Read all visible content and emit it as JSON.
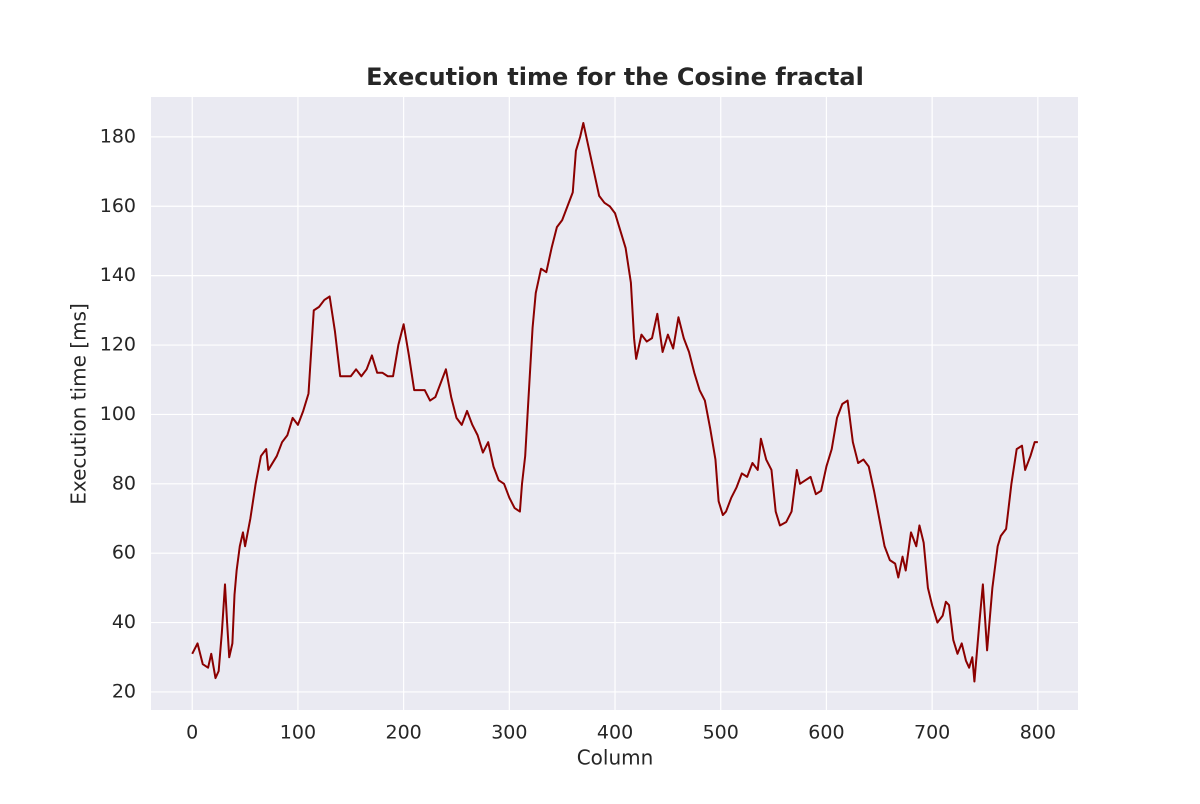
{
  "chart_data": {
    "type": "line",
    "title": "Execution time for the Cosine fractal",
    "x_label": "Column",
    "y_label": "Execution time [ms]",
    "x": [
      0,
      5,
      10,
      15,
      18,
      22,
      25,
      28,
      31,
      33,
      35,
      38,
      40,
      42,
      45,
      48,
      50,
      55,
      60,
      65,
      70,
      72,
      80,
      85,
      90,
      95,
      100,
      105,
      110,
      115,
      120,
      125,
      130,
      135,
      140,
      150,
      155,
      160,
      165,
      170,
      175,
      180,
      185,
      190,
      195,
      200,
      205,
      210,
      220,
      225,
      230,
      240,
      245,
      250,
      255,
      260,
      265,
      270,
      275,
      280,
      285,
      290,
      295,
      300,
      305,
      310,
      312,
      315,
      318,
      322,
      325,
      330,
      335,
      340,
      345,
      350,
      355,
      360,
      363,
      367,
      370,
      375,
      380,
      385,
      390,
      395,
      400,
      405,
      410,
      415,
      418,
      420,
      425,
      430,
      435,
      440,
      445,
      450,
      455,
      460,
      465,
      470,
      475,
      480,
      485,
      490,
      495,
      498,
      502,
      505,
      510,
      515,
      520,
      525,
      530,
      535,
      538,
      543,
      548,
      552,
      556,
      562,
      567,
      572,
      575,
      580,
      585,
      590,
      595,
      600,
      605,
      610,
      615,
      620,
      625,
      630,
      635,
      640,
      645,
      650,
      655,
      660,
      665,
      668,
      672,
      675,
      680,
      685,
      688,
      692,
      696,
      700,
      705,
      710,
      713,
      716,
      720,
      724,
      728,
      732,
      735,
      738,
      740,
      745,
      748,
      752,
      757,
      762,
      765,
      770,
      775,
      780,
      785,
      788,
      793,
      797,
      800
    ],
    "series": [
      {
        "name": "Execution time",
        "color": "#8b0000",
        "values": [
          31,
          34,
          28,
          27,
          31,
          24,
          26,
          37,
          51,
          40,
          30,
          34,
          48,
          55,
          62,
          66,
          62,
          70,
          80,
          88,
          90,
          84,
          88,
          92,
          94,
          99,
          97,
          101,
          106,
          130,
          131,
          133,
          134,
          124,
          111,
          111,
          113,
          111,
          113,
          117,
          112,
          112,
          111,
          111,
          120,
          126,
          117,
          107,
          107,
          104,
          105,
          113,
          105,
          99,
          97,
          101,
          97,
          94,
          89,
          92,
          85,
          81,
          80,
          76,
          73,
          72,
          80,
          88,
          104,
          125,
          135,
          142,
          141,
          148,
          154,
          156,
          160,
          164,
          176,
          180,
          184,
          177,
          170,
          163,
          161,
          160,
          158,
          153,
          148,
          138,
          122,
          116,
          123,
          121,
          122,
          129,
          118,
          123,
          119,
          128,
          122,
          118,
          112,
          107,
          104,
          96,
          87,
          75,
          71,
          72,
          76,
          79,
          83,
          82,
          86,
          84,
          93,
          87,
          84,
          72,
          68,
          69,
          72,
          84,
          80,
          81,
          82,
          77,
          78,
          85,
          90,
          99,
          103,
          104,
          92,
          86,
          87,
          85,
          78,
          70,
          62,
          58,
          57,
          53,
          59,
          55,
          66,
          62,
          68,
          63,
          50,
          45,
          40,
          42,
          46,
          45,
          35,
          31,
          34,
          29,
          27,
          30,
          23,
          41,
          51,
          32,
          50,
          62,
          65,
          67,
          80,
          90,
          91,
          84,
          88,
          92,
          92
        ]
      }
    ],
    "xlim": [
      -39,
      838
    ],
    "ylim": [
      14.8,
      191.5
    ],
    "xticks": [
      0,
      100,
      200,
      300,
      400,
      500,
      600,
      700,
      800
    ],
    "yticks": [
      20,
      40,
      60,
      80,
      100,
      120,
      140,
      160,
      180
    ],
    "grid": true
  }
}
